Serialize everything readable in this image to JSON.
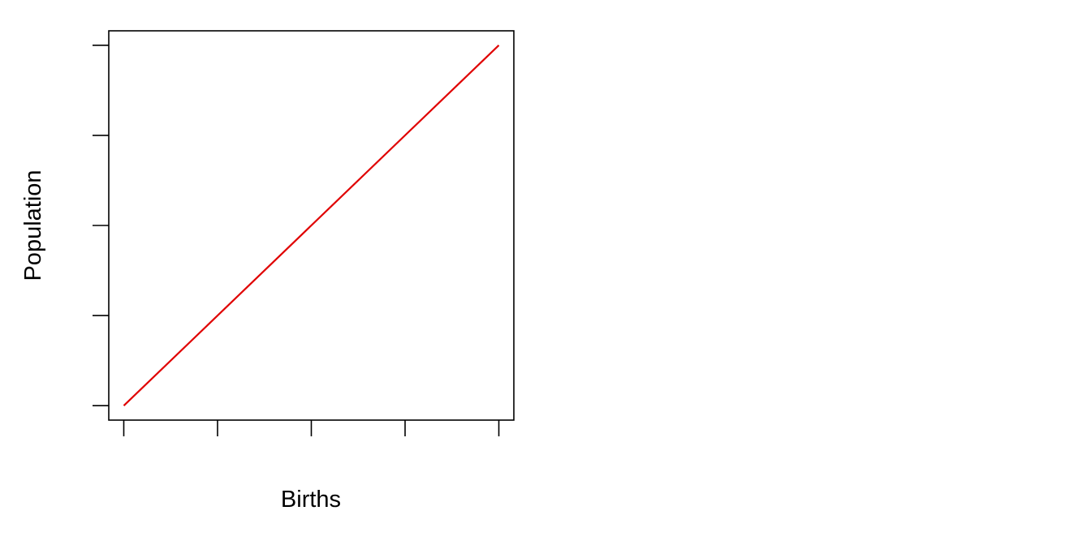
{
  "chart_data": {
    "type": "line",
    "title": "",
    "xlabel": "Births",
    "ylabel": "Population",
    "x_ticks": [
      0,
      1,
      2,
      3,
      4
    ],
    "y_ticks": [
      0,
      1,
      2,
      3,
      4
    ],
    "xlim": [
      -0.16,
      4.16
    ],
    "ylim": [
      -0.16,
      4.16
    ],
    "tick_labels_shown": false,
    "grid": false,
    "legend": "none",
    "series": [
      {
        "color": "#e00000",
        "x": [
          0,
          4
        ],
        "y": [
          0,
          4
        ]
      }
    ]
  },
  "colors": {
    "background": "#ffffff",
    "axis": "#000000",
    "line": "#e00000"
  }
}
